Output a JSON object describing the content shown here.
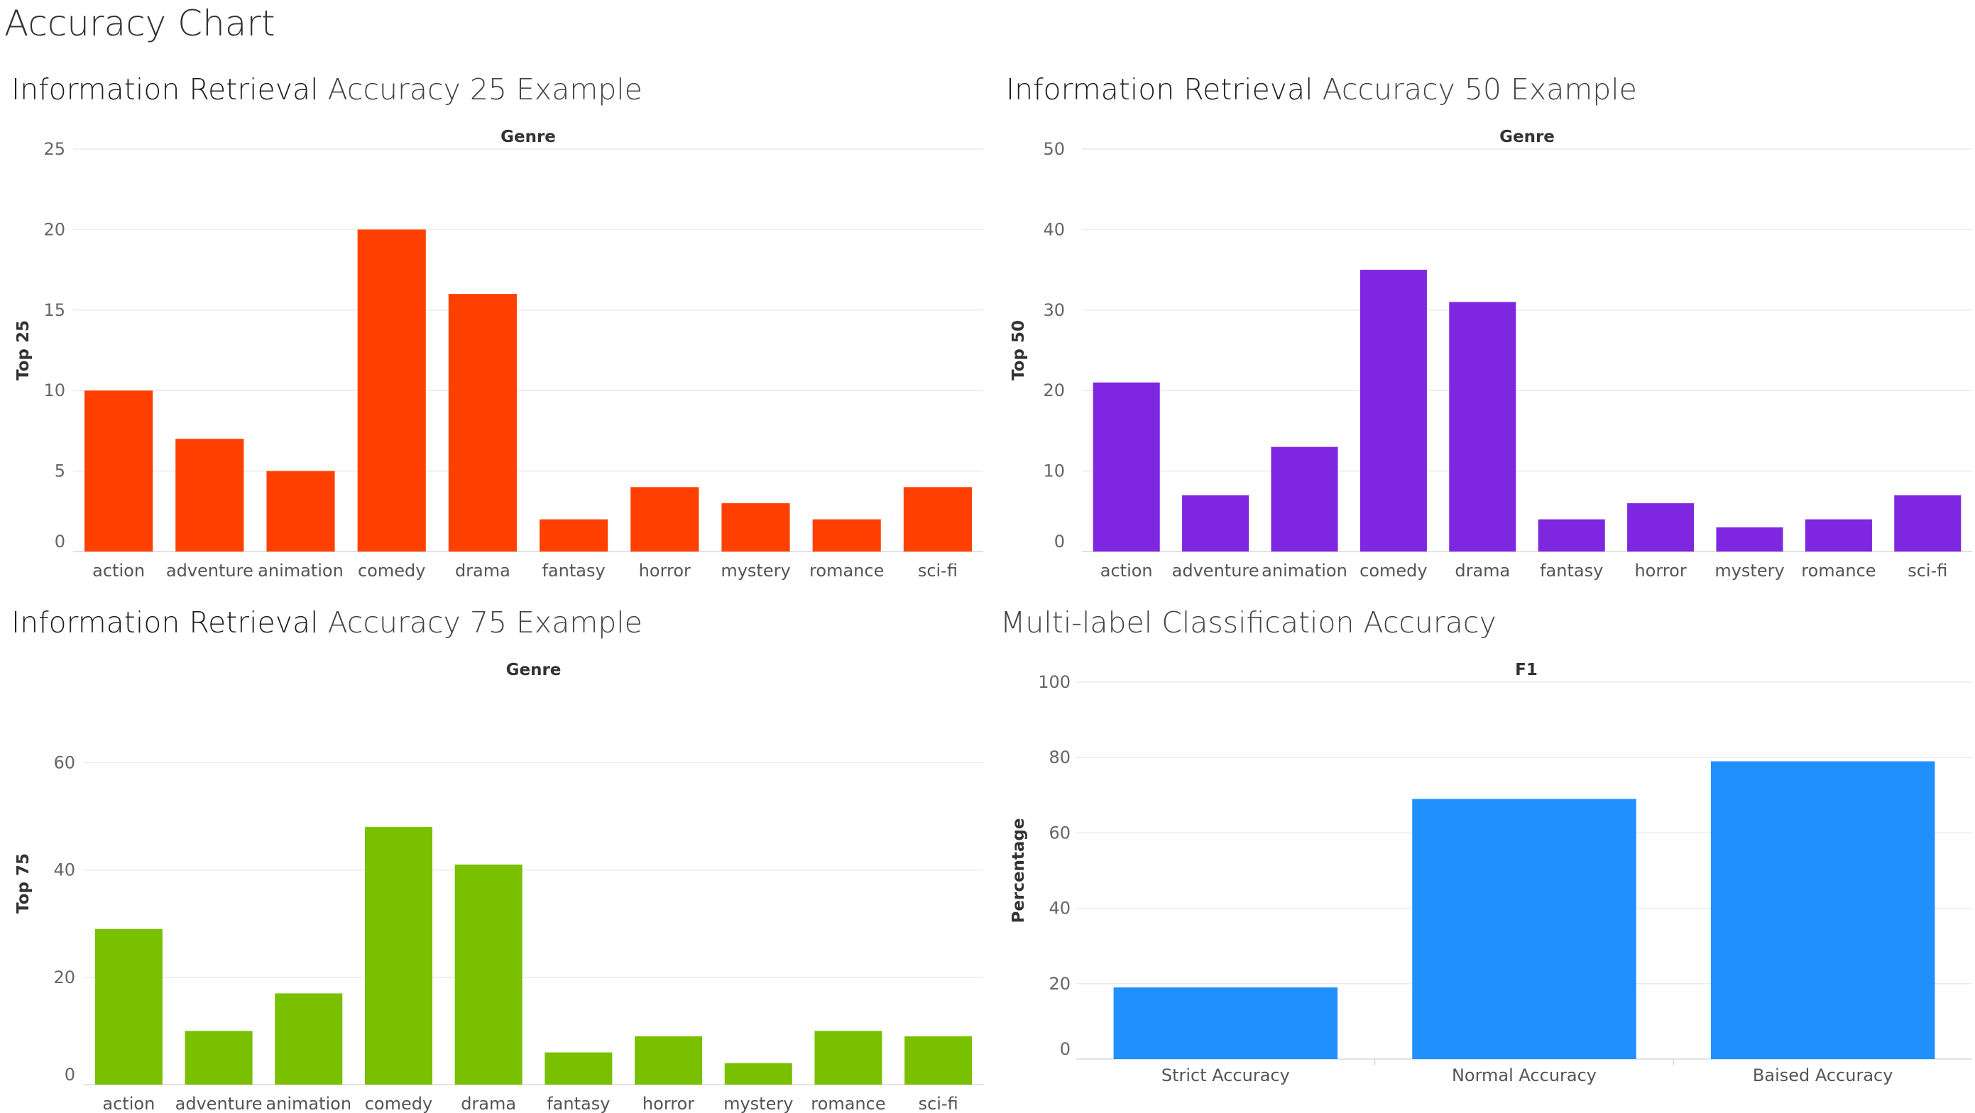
{
  "page": {
    "title": "Accuracy Chart"
  },
  "chart_data": [
    {
      "type": "bar",
      "title_part1": "Information Retrieval",
      "title_part2": "Accuracy 25 Example",
      "header": "Genre",
      "ylabel": "Top 25",
      "ylim": [
        0,
        25
      ],
      "yticks": [
        0,
        5,
        10,
        15,
        20,
        25
      ],
      "color": "#ff4000",
      "categories": [
        "action",
        "adventure",
        "animation",
        "comedy",
        "drama",
        "fantasy",
        "horror",
        "mystery",
        "romance",
        "sci-fi"
      ],
      "values": [
        10,
        7,
        5,
        20,
        16,
        2,
        4,
        3,
        2,
        4
      ]
    },
    {
      "type": "bar",
      "title_part1": "Information Retrieval",
      "title_part2": "Accuracy 50 Example",
      "header": "Genre",
      "ylabel": "Top 50",
      "ylim": [
        0,
        50
      ],
      "yticks": [
        0,
        10,
        20,
        30,
        40,
        50
      ],
      "color": "#7e26e0",
      "categories": [
        "action",
        "adventure",
        "animation",
        "comedy",
        "drama",
        "fantasy",
        "horror",
        "mystery",
        "romance",
        "sci-fi"
      ],
      "values": [
        21,
        7,
        13,
        35,
        31,
        4,
        6,
        3,
        4,
        7
      ]
    },
    {
      "type": "bar",
      "title_part1": "Information Retrieval",
      "title_part2": "Accuracy 75 Example",
      "header": "Genre",
      "ylabel": "Top 75",
      "ylim": [
        0,
        75
      ],
      "yticks": [
        0,
        20,
        40,
        60
      ],
      "color": "#78c000",
      "categories": [
        "action",
        "adventure",
        "animation",
        "comedy",
        "drama",
        "fantasy",
        "horror",
        "mystery",
        "romance",
        "sci-fi"
      ],
      "values": [
        29,
        10,
        17,
        48,
        41,
        6,
        9,
        4,
        10,
        9
      ]
    },
    {
      "type": "bar",
      "title_part1": "",
      "title_part2": "Multi-label Classification Accuracy",
      "header": "F1",
      "ylabel": "Percentage",
      "ylim": [
        0,
        100
      ],
      "yticks": [
        0,
        20,
        40,
        60,
        80,
        100
      ],
      "color": "#2090ff",
      "categories": [
        "Strict Accuracy",
        "Normal Accuracy",
        "Baised Accuracy"
      ],
      "values": [
        19,
        69,
        79
      ]
    }
  ]
}
